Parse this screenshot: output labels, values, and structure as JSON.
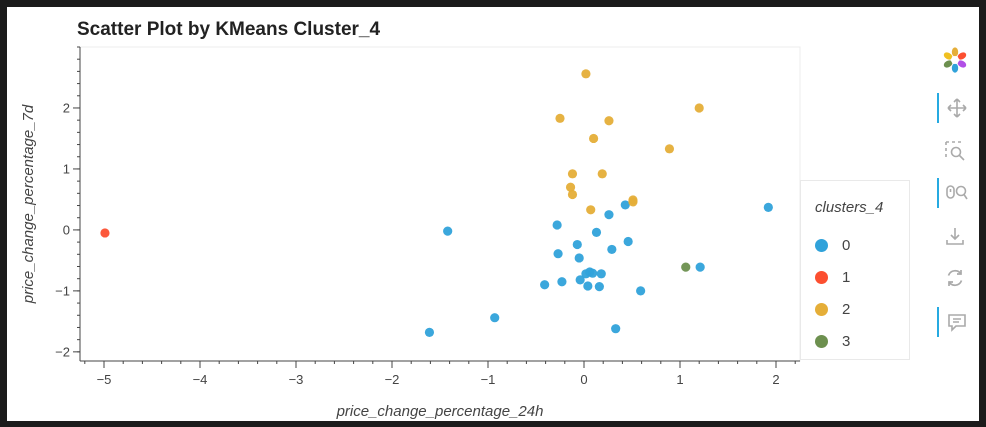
{
  "chart_data": {
    "type": "scatter",
    "title": "Scatter Plot by KMeans Cluster_4",
    "xlabel": "price_change_percentage_24h",
    "ylabel": "price_change_percentage_7d",
    "xlim": [
      -5.25,
      2.25
    ],
    "ylim": [
      -2.15,
      3.0
    ],
    "xticks": [
      -5,
      -4,
      -3,
      -2,
      -1,
      0,
      1,
      2
    ],
    "yticks": [
      -2,
      -1,
      0,
      1,
      2
    ],
    "x_tick_labels": [
      "−5",
      "−4",
      "−3",
      "−2",
      "−1",
      "0",
      "1",
      "2"
    ],
    "y_tick_labels": [
      "−2",
      "−1",
      "0",
      "1",
      "2"
    ],
    "grid": false,
    "legend": {
      "title": "clusters_4",
      "placement": "right"
    },
    "series": [
      {
        "name": "0",
        "color": "#30a2da",
        "points": [
          [
            -1.42,
            -0.02
          ],
          [
            -1.61,
            -1.68
          ],
          [
            -0.93,
            -1.44
          ],
          [
            -0.41,
            -0.9
          ],
          [
            -0.28,
            0.08
          ],
          [
            -0.27,
            -0.39
          ],
          [
            -0.23,
            -0.85
          ],
          [
            -0.07,
            -0.24
          ],
          [
            -0.05,
            -0.46
          ],
          [
            -0.04,
            -0.82
          ],
          [
            0.02,
            -0.72
          ],
          [
            0.04,
            -0.92
          ],
          [
            0.06,
            -0.69
          ],
          [
            0.09,
            -0.71
          ],
          [
            0.13,
            -0.04
          ],
          [
            0.16,
            -0.93
          ],
          [
            0.18,
            -0.72
          ],
          [
            0.26,
            0.25
          ],
          [
            0.29,
            -0.32
          ],
          [
            0.33,
            -1.62
          ],
          [
            0.43,
            0.41
          ],
          [
            0.46,
            -0.19
          ],
          [
            0.59,
            -1.0
          ],
          [
            1.21,
            -0.61
          ],
          [
            1.92,
            0.37
          ]
        ]
      },
      {
        "name": "1",
        "color": "#fc4f30",
        "points": [
          [
            -4.99,
            -0.05
          ]
        ]
      },
      {
        "name": "2",
        "color": "#e5ae38",
        "points": [
          [
            0.02,
            2.56
          ],
          [
            -0.25,
            1.83
          ],
          [
            0.1,
            1.5
          ],
          [
            0.26,
            1.79
          ],
          [
            1.2,
            2.0
          ],
          [
            0.89,
            1.33
          ],
          [
            -0.12,
            0.92
          ],
          [
            0.19,
            0.92
          ],
          [
            -0.14,
            0.7
          ],
          [
            -0.12,
            0.58
          ],
          [
            0.07,
            0.33
          ],
          [
            0.51,
            0.46
          ],
          [
            0.51,
            0.49
          ]
        ]
      },
      {
        "name": "3",
        "color": "#6d904f",
        "points": [
          [
            1.06,
            -0.61
          ]
        ]
      }
    ]
  },
  "toolbar": {
    "tools": [
      {
        "name": "bokeh-logo-icon",
        "active": false
      },
      {
        "name": "pan-tool-icon",
        "active": true
      },
      {
        "name": "box-zoom-tool-icon",
        "active": false
      },
      {
        "name": "wheel-zoom-tool-icon",
        "active": true
      },
      {
        "name": "save-tool-icon",
        "active": false
      },
      {
        "name": "reset-tool-icon",
        "active": false
      },
      {
        "name": "hover-tool-icon",
        "active": true
      }
    ]
  }
}
